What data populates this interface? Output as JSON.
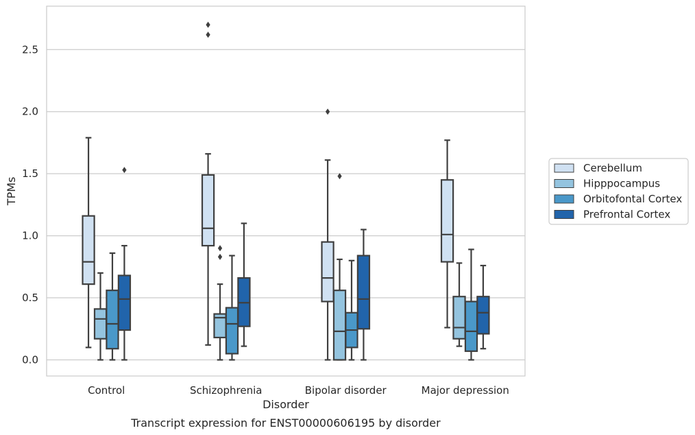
{
  "chart_data": {
    "type": "box",
    "caption": "Transcript expression for ENST00000606195 by disorder",
    "xlabel": "Disorder",
    "ylabel": "TPMs",
    "ylim": [
      -0.13,
      2.85
    ],
    "yticks": [
      0.0,
      0.5,
      1.0,
      1.5,
      2.0,
      2.5
    ],
    "ytick_labels": [
      "0.0",
      "0.5",
      "1.0",
      "1.5",
      "2.0",
      "2.5"
    ],
    "grid": "horizontal",
    "legend_position": "right",
    "categories": [
      "Control",
      "Schizophrenia",
      "Bipolar disorder",
      "Major depression"
    ],
    "series": [
      {
        "name": "Cerebellum",
        "color": "#d0e1f2",
        "boxes": [
          {
            "whisker_low": 0.1,
            "q1": 0.61,
            "median": 0.79,
            "q3": 1.16,
            "whisker_high": 1.79,
            "outliers": []
          },
          {
            "whisker_low": 0.12,
            "q1": 0.92,
            "median": 1.06,
            "q3": 1.49,
            "whisker_high": 1.66,
            "outliers": [
              2.62,
              2.7
            ]
          },
          {
            "whisker_low": 0.0,
            "q1": 0.47,
            "median": 0.66,
            "q3": 0.95,
            "whisker_high": 1.61,
            "outliers": [
              2.0
            ]
          },
          {
            "whisker_low": 0.26,
            "q1": 0.79,
            "median": 1.01,
            "q3": 1.45,
            "whisker_high": 1.77,
            "outliers": []
          }
        ]
      },
      {
        "name": "Hipppocampus",
        "color": "#94c4df",
        "boxes": [
          {
            "whisker_low": 0.0,
            "q1": 0.17,
            "median": 0.33,
            "q3": 0.41,
            "whisker_high": 0.7,
            "outliers": []
          },
          {
            "whisker_low": 0.0,
            "q1": 0.18,
            "median": 0.34,
            "q3": 0.37,
            "whisker_high": 0.61,
            "outliers": [
              0.83,
              0.9
            ]
          },
          {
            "whisker_low": 0.0,
            "q1": 0.0,
            "median": 0.23,
            "q3": 0.56,
            "whisker_high": 0.81,
            "outliers": [
              1.48
            ]
          },
          {
            "whisker_low": 0.11,
            "q1": 0.17,
            "median": 0.26,
            "q3": 0.51,
            "whisker_high": 0.78,
            "outliers": []
          }
        ]
      },
      {
        "name": "Orbitofontal Cortex",
        "color": "#4a98c9",
        "boxes": [
          {
            "whisker_low": 0.0,
            "q1": 0.09,
            "median": 0.29,
            "q3": 0.56,
            "whisker_high": 0.86,
            "outliers": []
          },
          {
            "whisker_low": 0.0,
            "q1": 0.05,
            "median": 0.29,
            "q3": 0.42,
            "whisker_high": 0.84,
            "outliers": []
          },
          {
            "whisker_low": 0.0,
            "q1": 0.1,
            "median": 0.24,
            "q3": 0.38,
            "whisker_high": 0.8,
            "outliers": []
          },
          {
            "whisker_low": 0.0,
            "q1": 0.07,
            "median": 0.23,
            "q3": 0.47,
            "whisker_high": 0.89,
            "outliers": []
          }
        ]
      },
      {
        "name": "Prefrontal Cortex",
        "color": "#2164ab",
        "boxes": [
          {
            "whisker_low": 0.0,
            "q1": 0.24,
            "median": 0.49,
            "q3": 0.68,
            "whisker_high": 0.92,
            "outliers": [
              1.53
            ]
          },
          {
            "whisker_low": 0.11,
            "q1": 0.27,
            "median": 0.46,
            "q3": 0.66,
            "whisker_high": 1.1,
            "outliers": []
          },
          {
            "whisker_low": 0.0,
            "q1": 0.25,
            "median": 0.49,
            "q3": 0.84,
            "whisker_high": 1.05,
            "outliers": []
          },
          {
            "whisker_low": 0.09,
            "q1": 0.21,
            "median": 0.38,
            "q3": 0.51,
            "whisker_high": 0.76,
            "outliers": []
          }
        ]
      }
    ]
  }
}
